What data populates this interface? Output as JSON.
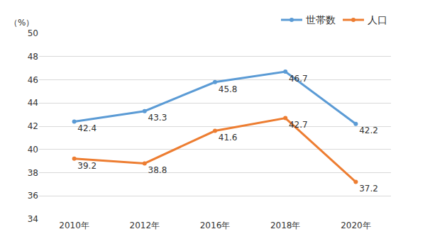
{
  "chart_data": {
    "type": "line",
    "y_label": "（%）",
    "categories": [
      "2010年",
      "2012年",
      "2016年",
      "2018年",
      "2020年"
    ],
    "series": [
      {
        "name": "世帯数",
        "color": "#5b9bd5",
        "values": [
          42.4,
          43.3,
          45.8,
          46.7,
          42.2
        ]
      },
      {
        "name": "人口",
        "color": "#ed7d31",
        "values": [
          39.2,
          38.8,
          41.6,
          42.7,
          37.2
        ]
      }
    ],
    "ylim": [
      34,
      50
    ],
    "yticks": [
      34,
      36,
      38,
      40,
      42,
      44,
      46,
      48,
      50
    ],
    "grid": true,
    "legend": "top right",
    "data_labels": true,
    "marker": "circle"
  }
}
